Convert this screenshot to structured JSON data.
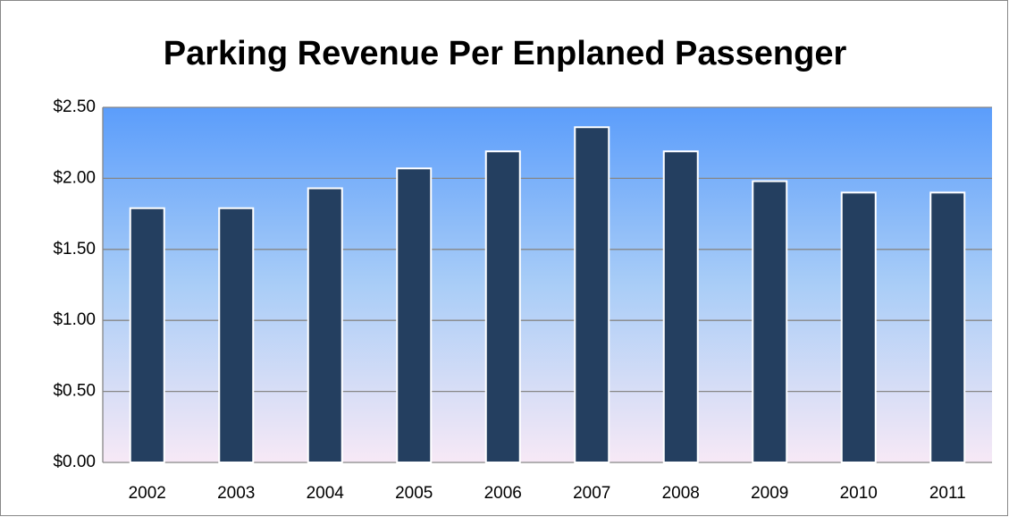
{
  "chart_data": {
    "type": "bar",
    "title": "Parking Revenue Per Enplaned Passenger",
    "categories": [
      "2002",
      "2003",
      "2004",
      "2005",
      "2006",
      "2007",
      "2008",
      "2009",
      "2010",
      "2011"
    ],
    "values": [
      1.79,
      1.79,
      1.93,
      2.07,
      2.19,
      2.36,
      2.19,
      1.98,
      1.9,
      1.9
    ],
    "color": "#243f60",
    "ylim": [
      0,
      2.5
    ],
    "yticks": [
      {
        "value": 0,
        "label": "$0.00"
      },
      {
        "value": 0.5,
        "label": "$0.50"
      },
      {
        "value": 1,
        "label": "$1.00"
      },
      {
        "value": 1.5,
        "label": "$1.50"
      },
      {
        "value": 2,
        "label": "$2.00"
      },
      {
        "value": 2.5,
        "label": "$2.50"
      }
    ],
    "grid": true
  }
}
